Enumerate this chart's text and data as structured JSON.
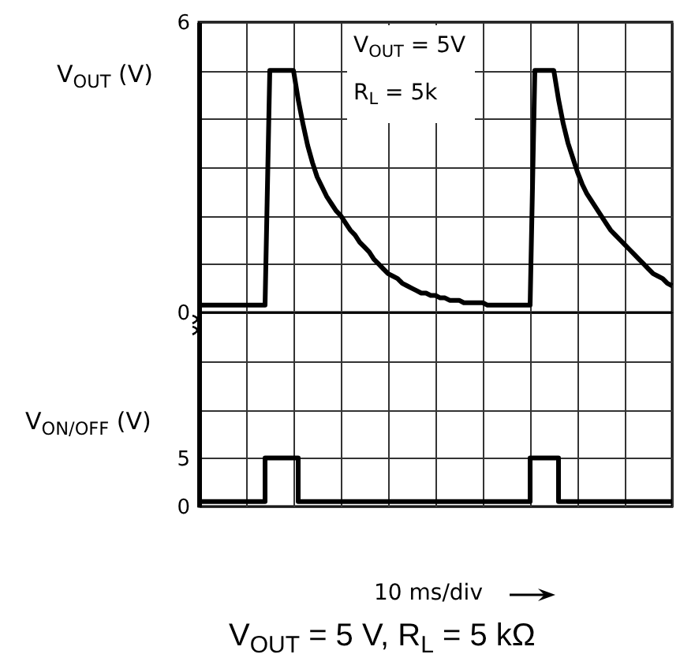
{
  "chart_data": [
    {
      "type": "line",
      "ylabel": "V$_{OUT}$ (V)",
      "annotations": [
        "V$_{OUT}$ = 5V",
        "R$_{L}$ = 5k"
      ],
      "categories": [
        null,
        null,
        null,
        null,
        null,
        null,
        null,
        null,
        null,
        null,
        null,
        null,
        null,
        null,
        null,
        null,
        null,
        null,
        null,
        null,
        null,
        null,
        null,
        null,
        null,
        null,
        null,
        null,
        null,
        null,
        null,
        null,
        null,
        null,
        null,
        null,
        null,
        null,
        null,
        null,
        null,
        null,
        null,
        null,
        null,
        null,
        null,
        null,
        null,
        null,
        null,
        null,
        null,
        null,
        null,
        null,
        null,
        null,
        null,
        null,
        null,
        null,
        null,
        null,
        null,
        null,
        null,
        null,
        null,
        null,
        null,
        null,
        null,
        null,
        null,
        null,
        null,
        null,
        null,
        null,
        null,
        null,
        null,
        null,
        null,
        null,
        null,
        null,
        null,
        null,
        null,
        null,
        null,
        null,
        null,
        null,
        null,
        null,
        null,
        null,
        null
      ],
      "values": [
        0.15,
        0.15,
        0.15,
        0.15,
        0.15,
        0.15,
        0.15,
        0.15,
        0.15,
        0.15,
        0.15,
        0.15,
        0.15,
        0.15,
        0.15,
        5,
        5,
        5,
        5,
        5,
        5,
        4.4,
        3.9,
        3.45,
        3.1,
        2.8,
        2.6,
        2.4,
        2.25,
        2.1,
        2.0,
        1.85,
        1.7,
        1.6,
        1.45,
        1.35,
        1.25,
        1.1,
        1.0,
        0.9,
        0.8,
        0.75,
        0.7,
        0.6,
        0.55,
        0.5,
        0.45,
        0.4,
        0.4,
        0.35,
        0.35,
        0.3,
        0.3,
        0.25,
        0.25,
        0.25,
        0.2,
        0.2,
        0.2,
        0.2,
        0.2,
        0.15,
        0.15,
        0.15,
        0.15,
        0.15,
        0.15,
        0.15,
        0.15,
        0.15,
        0.15,
        5,
        5,
        5,
        5,
        5,
        4.4,
        3.9,
        3.5,
        3.2,
        2.9,
        2.65,
        2.45,
        2.3,
        2.15,
        2.0,
        1.85,
        1.7,
        1.6,
        1.5,
        1.4,
        1.3,
        1.2,
        1.1,
        1.0,
        0.9,
        0.8,
        0.75,
        0.7,
        0.6,
        0.55
      ],
      "color": "#000000",
      "ylim": [
        0,
        6
      ],
      "yticks": [
        0,
        {
          "value": 1,
          "label": null
        },
        {
          "value": 2,
          "label": null
        },
        {
          "value": 3,
          "label": null
        },
        {
          "value": 4,
          "label": null
        },
        {
          "value": 5,
          "label": null
        },
        6
      ],
      "grid": true,
      "tick_labels": "y"
    },
    {
      "type": "step",
      "ylabel": "V$_{ON/OFF}$ (V)",
      "xlabel": "10 ms/div",
      "annotations": [
        "V$_{OUT}$ = 5 V, R$_{L}$ = 5 kΩ"
      ],
      "categories": [
        null,
        null,
        null,
        null,
        null,
        null,
        null,
        null,
        null,
        null,
        null,
        null,
        null,
        null,
        null,
        null,
        null,
        null,
        null,
        null,
        null,
        null,
        null,
        null,
        null,
        null,
        null,
        null,
        null,
        null,
        null,
        null,
        null,
        null,
        null,
        null,
        null,
        null,
        null,
        null,
        null,
        null,
        null,
        null,
        null,
        null,
        null,
        null,
        null,
        null,
        null,
        null,
        null,
        null,
        null,
        null,
        null,
        null,
        null,
        null,
        null,
        null,
        null,
        null,
        null,
        null,
        null,
        null,
        null,
        null,
        null,
        null,
        null,
        null,
        null,
        null,
        null,
        null,
        null,
        null,
        null,
        null,
        null,
        null,
        null,
        null,
        null,
        null,
        null,
        null,
        null,
        null,
        null,
        null,
        null,
        null,
        null,
        null,
        null,
        null,
        null
      ],
      "values": [
        0.5,
        0.5,
        0.5,
        0.5,
        0.5,
        0.5,
        0.5,
        0.5,
        0.5,
        0.5,
        0.5,
        0.5,
        0.5,
        0.5,
        5,
        5,
        5,
        5,
        5,
        5,
        5,
        0.5,
        0.5,
        0.5,
        0.5,
        0.5,
        0.5,
        0.5,
        0.5,
        0.5,
        0.5,
        0.5,
        0.5,
        0.5,
        0.5,
        0.5,
        0.5,
        0.5,
        0.5,
        0.5,
        0.5,
        0.5,
        0.5,
        0.5,
        0.5,
        0.5,
        0.5,
        0.5,
        0.5,
        0.5,
        0.5,
        0.5,
        0.5,
        0.5,
        0.5,
        0.5,
        0.5,
        0.5,
        0.5,
        0.5,
        0.5,
        0.5,
        0.5,
        0.5,
        0.5,
        0.5,
        0.5,
        0.5,
        0.5,
        0.5,
        5,
        5,
        5,
        5,
        5,
        5,
        0.5,
        0.5,
        0.5,
        0.5,
        0.5,
        0.5,
        0.5,
        0.5,
        0.5,
        0.5,
        0.5,
        0.5,
        0.5,
        0.5,
        0.5,
        0.5,
        0.5,
        0.5,
        0.5,
        0.5,
        0.5,
        0.5,
        0.5,
        0.5,
        0.5
      ],
      "color": "#000000",
      "ylim": [
        0,
        20
      ],
      "yticks": [
        0,
        5,
        {
          "value": 10,
          "label": null
        },
        {
          "value": 15,
          "label": null
        }
      ],
      "grid": true,
      "tick_labels": "y"
    }
  ]
}
